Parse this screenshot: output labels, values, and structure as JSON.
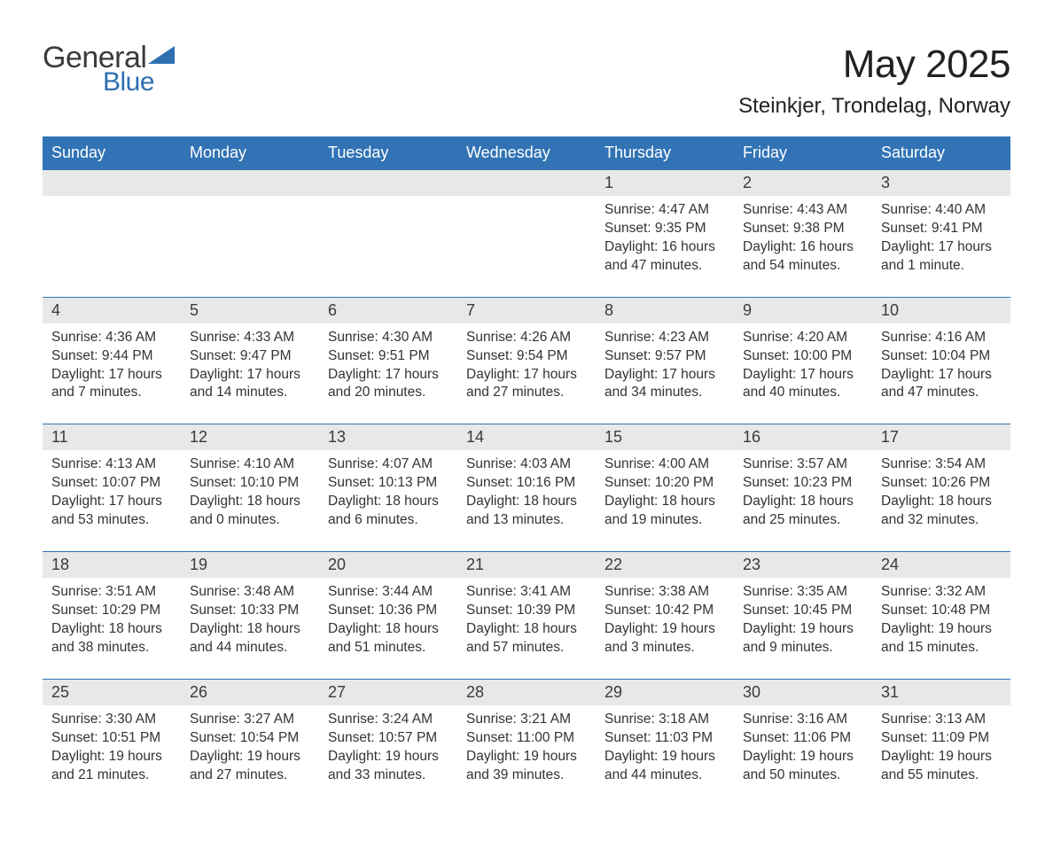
{
  "logo": {
    "text1": "General",
    "text2": "Blue",
    "triangle_color": "#2d6fb0",
    "text1_color": "#3a3a3a",
    "text2_color": "#2d6fb0"
  },
  "title": "May 2025",
  "location": "Steinkjer, Trondelag, Norway",
  "colors": {
    "header_bg": "#3173b5",
    "header_text": "#ffffff",
    "daynum_bg": "#e8e8e8",
    "row_border": "#3173b5",
    "body_text": "#333333",
    "page_bg": "#ffffff"
  },
  "weekdays": [
    "Sunday",
    "Monday",
    "Tuesday",
    "Wednesday",
    "Thursday",
    "Friday",
    "Saturday"
  ],
  "weeks": [
    [
      {
        "day": "",
        "sunrise": "",
        "sunset": "",
        "daylight": ""
      },
      {
        "day": "",
        "sunrise": "",
        "sunset": "",
        "daylight": ""
      },
      {
        "day": "",
        "sunrise": "",
        "sunset": "",
        "daylight": ""
      },
      {
        "day": "",
        "sunrise": "",
        "sunset": "",
        "daylight": ""
      },
      {
        "day": "1",
        "sunrise": "Sunrise: 4:47 AM",
        "sunset": "Sunset: 9:35 PM",
        "daylight": "Daylight: 16 hours and 47 minutes."
      },
      {
        "day": "2",
        "sunrise": "Sunrise: 4:43 AM",
        "sunset": "Sunset: 9:38 PM",
        "daylight": "Daylight: 16 hours and 54 minutes."
      },
      {
        "day": "3",
        "sunrise": "Sunrise: 4:40 AM",
        "sunset": "Sunset: 9:41 PM",
        "daylight": "Daylight: 17 hours and 1 minute."
      }
    ],
    [
      {
        "day": "4",
        "sunrise": "Sunrise: 4:36 AM",
        "sunset": "Sunset: 9:44 PM",
        "daylight": "Daylight: 17 hours and 7 minutes."
      },
      {
        "day": "5",
        "sunrise": "Sunrise: 4:33 AM",
        "sunset": "Sunset: 9:47 PM",
        "daylight": "Daylight: 17 hours and 14 minutes."
      },
      {
        "day": "6",
        "sunrise": "Sunrise: 4:30 AM",
        "sunset": "Sunset: 9:51 PM",
        "daylight": "Daylight: 17 hours and 20 minutes."
      },
      {
        "day": "7",
        "sunrise": "Sunrise: 4:26 AM",
        "sunset": "Sunset: 9:54 PM",
        "daylight": "Daylight: 17 hours and 27 minutes."
      },
      {
        "day": "8",
        "sunrise": "Sunrise: 4:23 AM",
        "sunset": "Sunset: 9:57 PM",
        "daylight": "Daylight: 17 hours and 34 minutes."
      },
      {
        "day": "9",
        "sunrise": "Sunrise: 4:20 AM",
        "sunset": "Sunset: 10:00 PM",
        "daylight": "Daylight: 17 hours and 40 minutes."
      },
      {
        "day": "10",
        "sunrise": "Sunrise: 4:16 AM",
        "sunset": "Sunset: 10:04 PM",
        "daylight": "Daylight: 17 hours and 47 minutes."
      }
    ],
    [
      {
        "day": "11",
        "sunrise": "Sunrise: 4:13 AM",
        "sunset": "Sunset: 10:07 PM",
        "daylight": "Daylight: 17 hours and 53 minutes."
      },
      {
        "day": "12",
        "sunrise": "Sunrise: 4:10 AM",
        "sunset": "Sunset: 10:10 PM",
        "daylight": "Daylight: 18 hours and 0 minutes."
      },
      {
        "day": "13",
        "sunrise": "Sunrise: 4:07 AM",
        "sunset": "Sunset: 10:13 PM",
        "daylight": "Daylight: 18 hours and 6 minutes."
      },
      {
        "day": "14",
        "sunrise": "Sunrise: 4:03 AM",
        "sunset": "Sunset: 10:16 PM",
        "daylight": "Daylight: 18 hours and 13 minutes."
      },
      {
        "day": "15",
        "sunrise": "Sunrise: 4:00 AM",
        "sunset": "Sunset: 10:20 PM",
        "daylight": "Daylight: 18 hours and 19 minutes."
      },
      {
        "day": "16",
        "sunrise": "Sunrise: 3:57 AM",
        "sunset": "Sunset: 10:23 PM",
        "daylight": "Daylight: 18 hours and 25 minutes."
      },
      {
        "day": "17",
        "sunrise": "Sunrise: 3:54 AM",
        "sunset": "Sunset: 10:26 PM",
        "daylight": "Daylight: 18 hours and 32 minutes."
      }
    ],
    [
      {
        "day": "18",
        "sunrise": "Sunrise: 3:51 AM",
        "sunset": "Sunset: 10:29 PM",
        "daylight": "Daylight: 18 hours and 38 minutes."
      },
      {
        "day": "19",
        "sunrise": "Sunrise: 3:48 AM",
        "sunset": "Sunset: 10:33 PM",
        "daylight": "Daylight: 18 hours and 44 minutes."
      },
      {
        "day": "20",
        "sunrise": "Sunrise: 3:44 AM",
        "sunset": "Sunset: 10:36 PM",
        "daylight": "Daylight: 18 hours and 51 minutes."
      },
      {
        "day": "21",
        "sunrise": "Sunrise: 3:41 AM",
        "sunset": "Sunset: 10:39 PM",
        "daylight": "Daylight: 18 hours and 57 minutes."
      },
      {
        "day": "22",
        "sunrise": "Sunrise: 3:38 AM",
        "sunset": "Sunset: 10:42 PM",
        "daylight": "Daylight: 19 hours and 3 minutes."
      },
      {
        "day": "23",
        "sunrise": "Sunrise: 3:35 AM",
        "sunset": "Sunset: 10:45 PM",
        "daylight": "Daylight: 19 hours and 9 minutes."
      },
      {
        "day": "24",
        "sunrise": "Sunrise: 3:32 AM",
        "sunset": "Sunset: 10:48 PM",
        "daylight": "Daylight: 19 hours and 15 minutes."
      }
    ],
    [
      {
        "day": "25",
        "sunrise": "Sunrise: 3:30 AM",
        "sunset": "Sunset: 10:51 PM",
        "daylight": "Daylight: 19 hours and 21 minutes."
      },
      {
        "day": "26",
        "sunrise": "Sunrise: 3:27 AM",
        "sunset": "Sunset: 10:54 PM",
        "daylight": "Daylight: 19 hours and 27 minutes."
      },
      {
        "day": "27",
        "sunrise": "Sunrise: 3:24 AM",
        "sunset": "Sunset: 10:57 PM",
        "daylight": "Daylight: 19 hours and 33 minutes."
      },
      {
        "day": "28",
        "sunrise": "Sunrise: 3:21 AM",
        "sunset": "Sunset: 11:00 PM",
        "daylight": "Daylight: 19 hours and 39 minutes."
      },
      {
        "day": "29",
        "sunrise": "Sunrise: 3:18 AM",
        "sunset": "Sunset: 11:03 PM",
        "daylight": "Daylight: 19 hours and 44 minutes."
      },
      {
        "day": "30",
        "sunrise": "Sunrise: 3:16 AM",
        "sunset": "Sunset: 11:06 PM",
        "daylight": "Daylight: 19 hours and 50 minutes."
      },
      {
        "day": "31",
        "sunrise": "Sunrise: 3:13 AM",
        "sunset": "Sunset: 11:09 PM",
        "daylight": "Daylight: 19 hours and 55 minutes."
      }
    ]
  ]
}
